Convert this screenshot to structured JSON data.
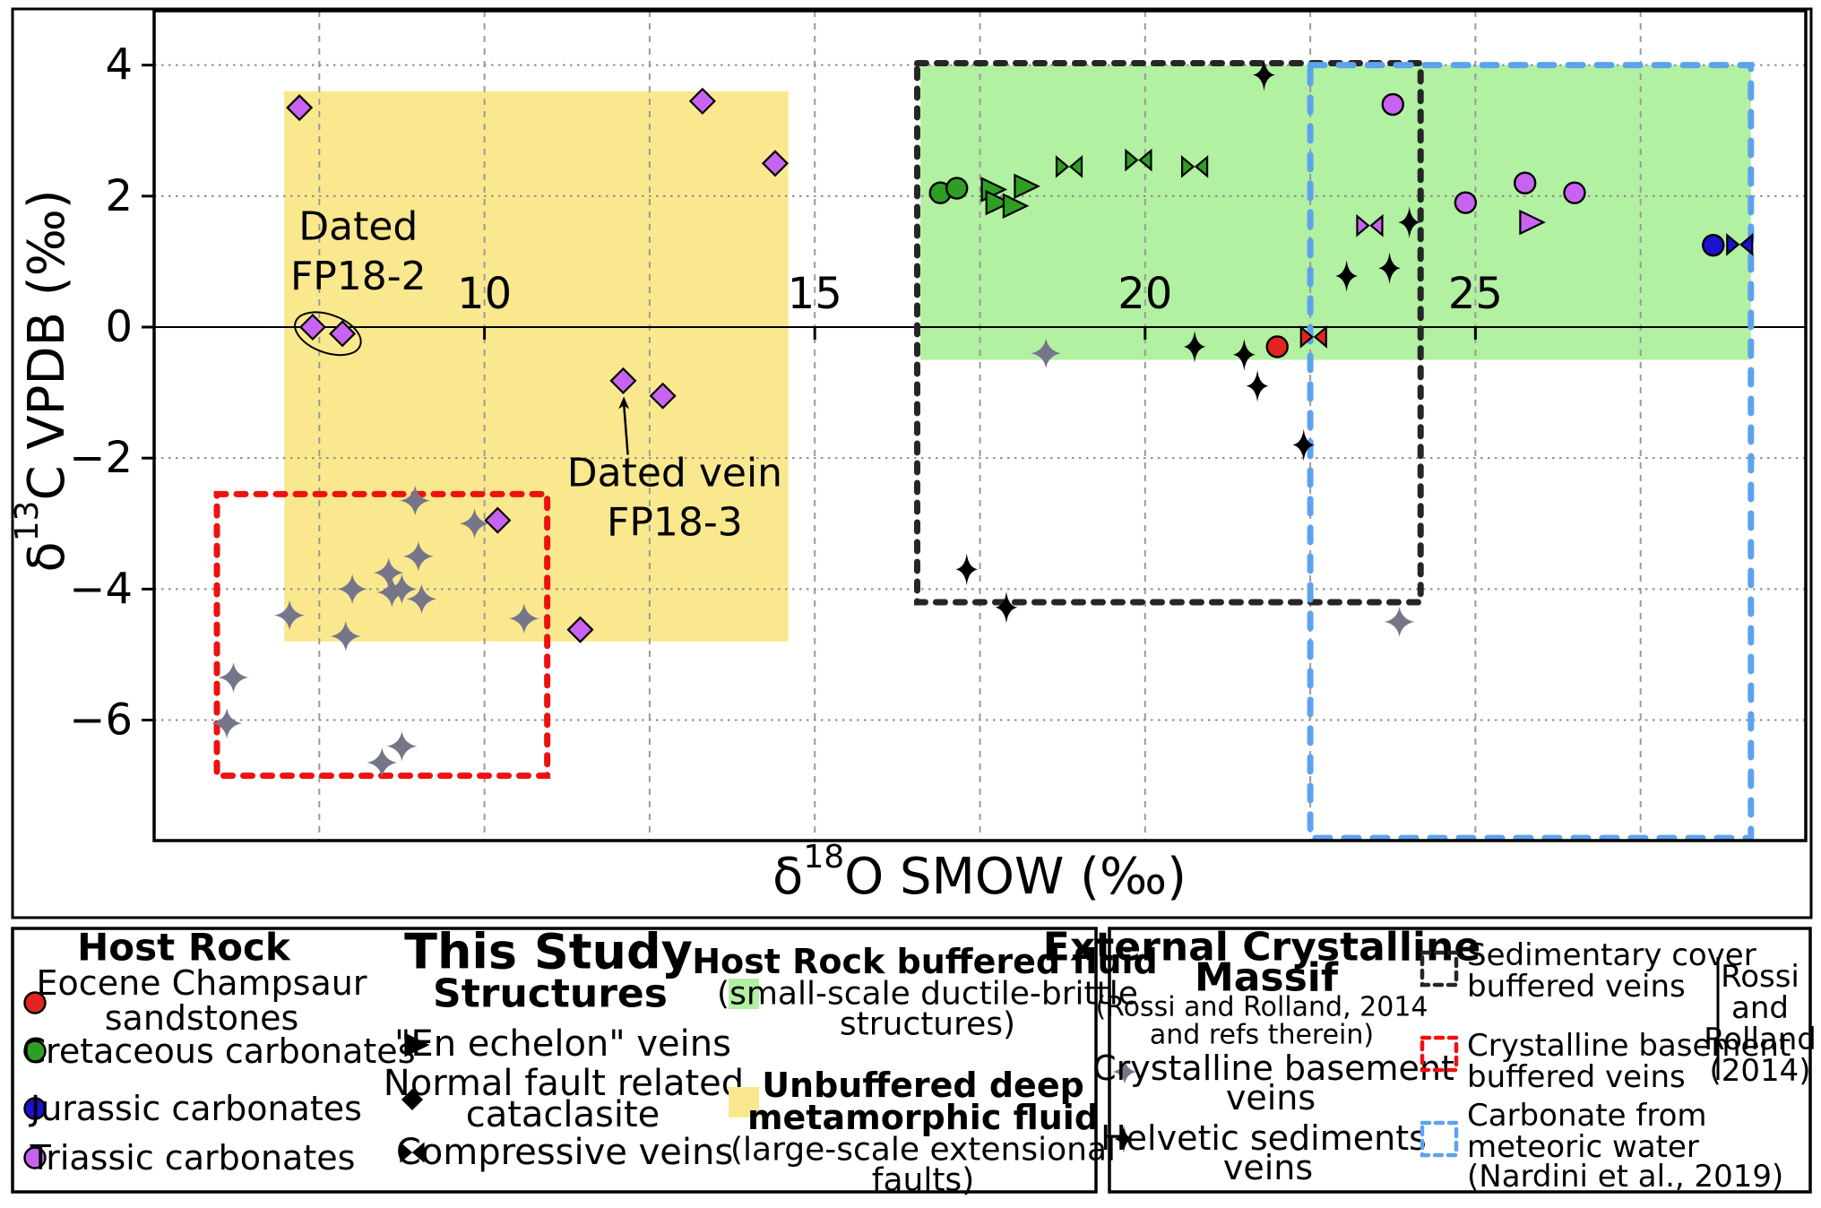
{
  "chart_data": {
    "type": "scatter",
    "title": "",
    "xlabel_sym": "δ",
    "xlabel_sup": "18",
    "xlabel_rest": "O SMOW (‰)",
    "ylabel_sym": "δ",
    "ylabel_sup": "13",
    "ylabel_rest": "C VPDB (‰)",
    "xlim": [
      5,
      30
    ],
    "ylim": [
      -7.84,
      4.83
    ],
    "xgrid": [
      7.5,
      10,
      12.5,
      15,
      17.5,
      20,
      22.5,
      25,
      27.5
    ],
    "ygrid": [
      4,
      2,
      -2,
      -4,
      -6
    ],
    "zero_line_y": 0,
    "xticks": [
      10,
      15,
      20,
      25
    ],
    "xtick_labels": [
      "10",
      "15",
      "20",
      "25"
    ],
    "yticks": [
      4,
      2,
      0,
      -2,
      -4,
      -6
    ],
    "ytick_labels": [
      "4",
      "2",
      "0",
      "−2",
      "−4",
      "−6"
    ],
    "regions": [
      {
        "name": "unbuffered-deep-metamorphic-fluid",
        "color": "#fae88f",
        "x0": 6.97,
        "x1": 14.6,
        "y0": -4.8,
        "y1": 3.6
      },
      {
        "name": "host-rock-buffered-fluid",
        "color": "#b2f0a2",
        "x0": 16.6,
        "x1": 29.17,
        "y0": -0.5,
        "y1": 4.0
      }
    ],
    "boxes": [
      {
        "name": "sedimentary-cover-buffered-veins",
        "color": "#262626",
        "dash": "10 12",
        "width": 7,
        "x0": 16.55,
        "x1": 24.17,
        "y0": -4.2,
        "y1": 4.03
      },
      {
        "name": "crystalline-basement-buffered-veins",
        "color": "#ee1111",
        "dash": "10 12",
        "width": 7,
        "x0": 5.95,
        "x1": 10.95,
        "y0": -6.85,
        "y1": -2.55
      },
      {
        "name": "carbonate-from-meteoric-water",
        "color": "#5da2ef",
        "dash": "16 16",
        "width": 7,
        "x0": 22.5,
        "x1": 29.17,
        "y0": -7.8,
        "y1": 4.0
      }
    ],
    "series": [
      {
        "name": "triassic-normal-fault-cataclasite",
        "host_rock": "Triassic carbonates",
        "structure": "Normal fault related cataclasite",
        "marker": "diamond",
        "color": "#c763f0",
        "points": [
          [
            7.2,
            3.35
          ],
          [
            13.3,
            3.45
          ],
          [
            14.4,
            2.5
          ],
          [
            7.4,
            0.0
          ],
          [
            7.85,
            -0.1
          ],
          [
            12.1,
            -0.82
          ],
          [
            12.7,
            -1.05
          ],
          [
            10.2,
            -2.95
          ],
          [
            11.45,
            -4.62
          ]
        ]
      },
      {
        "name": "crystalline-basement-veins",
        "host_rock": "External Crystalline Massif",
        "structure": "Crystalline basement veins",
        "marker": "star4",
        "color": "#76768a",
        "points": [
          [
            8.95,
            -2.65
          ],
          [
            9.85,
            -3.0
          ],
          [
            9.0,
            -3.5
          ],
          [
            8.55,
            -3.75
          ],
          [
            8.0,
            -4.0
          ],
          [
            8.6,
            -4.05
          ],
          [
            8.75,
            -4.0
          ],
          [
            9.05,
            -4.15
          ],
          [
            7.05,
            -4.4
          ],
          [
            7.9,
            -4.72
          ],
          [
            10.6,
            -4.45
          ],
          [
            6.2,
            -5.35
          ],
          [
            6.1,
            -6.05
          ],
          [
            8.45,
            -6.65
          ],
          [
            8.75,
            -6.4
          ],
          [
            18.5,
            -0.4
          ],
          [
            23.85,
            -4.5
          ]
        ]
      },
      {
        "name": "helvetic-sediments-veins",
        "host_rock": "External Crystalline Massif",
        "structure": "Helvetic sediments veins",
        "marker": "cross4",
        "color": "#000000",
        "points": [
          [
            21.8,
            3.85
          ],
          [
            23.05,
            0.78
          ],
          [
            23.7,
            0.9
          ],
          [
            24.0,
            1.6
          ],
          [
            20.75,
            -0.3
          ],
          [
            21.5,
            -0.42
          ],
          [
            21.7,
            -0.9
          ],
          [
            22.4,
            -1.8
          ],
          [
            17.3,
            -3.7
          ],
          [
            17.9,
            -4.28
          ]
        ]
      },
      {
        "name": "cretaceous-host-rock",
        "host_rock": "Cretaceous carbonates",
        "structure": "host rock",
        "marker": "circle",
        "color": "#2f9e24",
        "points": [
          [
            16.9,
            2.05
          ],
          [
            17.15,
            2.12
          ]
        ]
      },
      {
        "name": "cretaceous-en-echelon-veins",
        "host_rock": "Cretaceous carbonates",
        "structure": "\"En echelon\" veins",
        "marker": "tri",
        "color": "#2f9e24",
        "points": [
          [
            17.65,
            2.1
          ],
          [
            17.72,
            1.9
          ],
          [
            17.98,
            1.85
          ],
          [
            18.15,
            2.15
          ]
        ]
      },
      {
        "name": "cretaceous-compressive-veins",
        "host_rock": "Cretaceous carbonates",
        "structure": "Compressive veins",
        "marker": "bowtie",
        "color": "#2f9e24",
        "points": [
          [
            18.85,
            2.45
          ],
          [
            19.9,
            2.55
          ],
          [
            20.75,
            2.45
          ]
        ]
      },
      {
        "name": "triassic-host-rock",
        "host_rock": "Triassic carbonates",
        "structure": "host rock",
        "marker": "circle",
        "color": "#c763f0",
        "points": [
          [
            23.75,
            3.4
          ],
          [
            24.85,
            1.9
          ],
          [
            25.75,
            2.2
          ],
          [
            26.5,
            2.05
          ]
        ]
      },
      {
        "name": "triassic-en-echelon-veins",
        "host_rock": "Triassic carbonates",
        "structure": "\"En echelon\" veins",
        "marker": "tri",
        "color": "#c763f0",
        "points": [
          [
            25.8,
            1.6
          ]
        ]
      },
      {
        "name": "triassic-compressive-veins",
        "host_rock": "Triassic carbonates",
        "structure": "Compressive veins",
        "marker": "bowtie",
        "color": "#c763f0",
        "points": [
          [
            23.4,
            1.55
          ]
        ]
      },
      {
        "name": "eocene-host-rock",
        "host_rock": "Eocene Champsaur sandstones",
        "structure": "host rock",
        "marker": "circle",
        "color": "#e32420",
        "points": [
          [
            22.0,
            -0.3
          ]
        ]
      },
      {
        "name": "eocene-compressive-veins",
        "host_rock": "Eocene Champsaur sandstones",
        "structure": "Compressive veins",
        "marker": "bowtie",
        "color": "#e32420",
        "points": [
          [
            22.55,
            -0.15
          ]
        ]
      },
      {
        "name": "jurassic-host-rock",
        "host_rock": "Jurassic carbonates",
        "structure": "host rock",
        "marker": "circle",
        "color": "#1a12cc",
        "points": [
          [
            28.6,
            1.25
          ]
        ]
      },
      {
        "name": "jurassic-compressive-veins",
        "host_rock": "Jurassic carbonates",
        "structure": "Compressive veins",
        "marker": "bowtie",
        "color": "#1a12cc",
        "points": [
          [
            29.0,
            1.26
          ]
        ]
      }
    ],
    "annotations": {
      "fp18_2": {
        "line1": "Dated",
        "line2": "FP18-2",
        "x": 8.09,
        "y1": 1.53,
        "y2": 0.77,
        "ellipse": {
          "cx": 7.63,
          "cy": -0.1,
          "rx": 0.52,
          "ry": 0.29,
          "angle": 20
        }
      },
      "fp18_3": {
        "line1": "Dated vein",
        "line2": "FP18-3",
        "x": 12.88,
        "y1": -2.23,
        "y2": -2.98,
        "arrow": {
          "x1": 12.17,
          "y1": -1.95,
          "x2": 12.11,
          "y2": -1.06
        }
      }
    }
  },
  "legend_left": {
    "host_rock": {
      "title": "Host Rock",
      "items": [
        {
          "marker": "circle",
          "color": "#e32420",
          "label_lines": [
            "Eocene Champsaur",
            "sandstones"
          ]
        },
        {
          "marker": "circle",
          "color": "#2f9e24",
          "label_lines": [
            "Cretaceous carbonates"
          ]
        },
        {
          "marker": "circle",
          "color": "#1a12cc",
          "label_lines": [
            "Jurassic carbonates"
          ]
        },
        {
          "marker": "circle",
          "color": "#c763f0",
          "label_lines": [
            "Triassic carbonates"
          ]
        }
      ]
    },
    "this_study": {
      "title": "This Study",
      "subtitle": "Structures",
      "items": [
        {
          "marker": "tri",
          "color": "#000000",
          "label_lines": [
            "\"En echelon\" veins"
          ]
        },
        {
          "marker": "diamond",
          "color": "#000000",
          "label_lines": [
            "Normal fault related",
            "cataclasite"
          ]
        },
        {
          "marker": "bowtie",
          "color": "#000000",
          "label_lines": [
            "Compressive veins"
          ]
        }
      ]
    },
    "fluids": [
      {
        "swatch": "#b2f0a2",
        "title_lines": [
          "Host Rock buffered fluid"
        ],
        "sub_lines": [
          "(small-scale ductile-brittle",
          "structures)"
        ]
      },
      {
        "swatch": "#fae88f",
        "title_lines": [
          "Unbuffered deep",
          "metamorphic fluid"
        ],
        "sub_lines": [
          "(large-scale extensional",
          "faults)"
        ]
      }
    ]
  },
  "legend_right": {
    "title_lines": [
      "External Crystalline",
      "Massif"
    ],
    "subtitle_lines": [
      "(Rossi and Rolland, 2014",
      "and refs therein)"
    ],
    "items": [
      {
        "marker": "star4",
        "color": "#76768a",
        "label_lines": [
          "Crystalline basement",
          "veins"
        ]
      },
      {
        "marker": "cross4",
        "color": "#000000",
        "label_lines": [
          "Helvetic sediments",
          "veins"
        ]
      }
    ],
    "boxes": [
      {
        "color": "#262626",
        "dash": "8 7",
        "label_lines": [
          "Sedimentary cover",
          "buffered veins"
        ]
      },
      {
        "color": "#ee1111",
        "dash": "8 7",
        "label_lines": [
          "Crystalline basement",
          "buffered veins"
        ]
      },
      {
        "color": "#5da2ef",
        "dash": "8 7",
        "label_lines": [
          "Carbonate from",
          "meteoric water",
          "(Nardini et al., 2019)"
        ]
      }
    ],
    "bracket_lines": [
      "Rossi",
      "and",
      "Rolland",
      "(2014)"
    ]
  }
}
